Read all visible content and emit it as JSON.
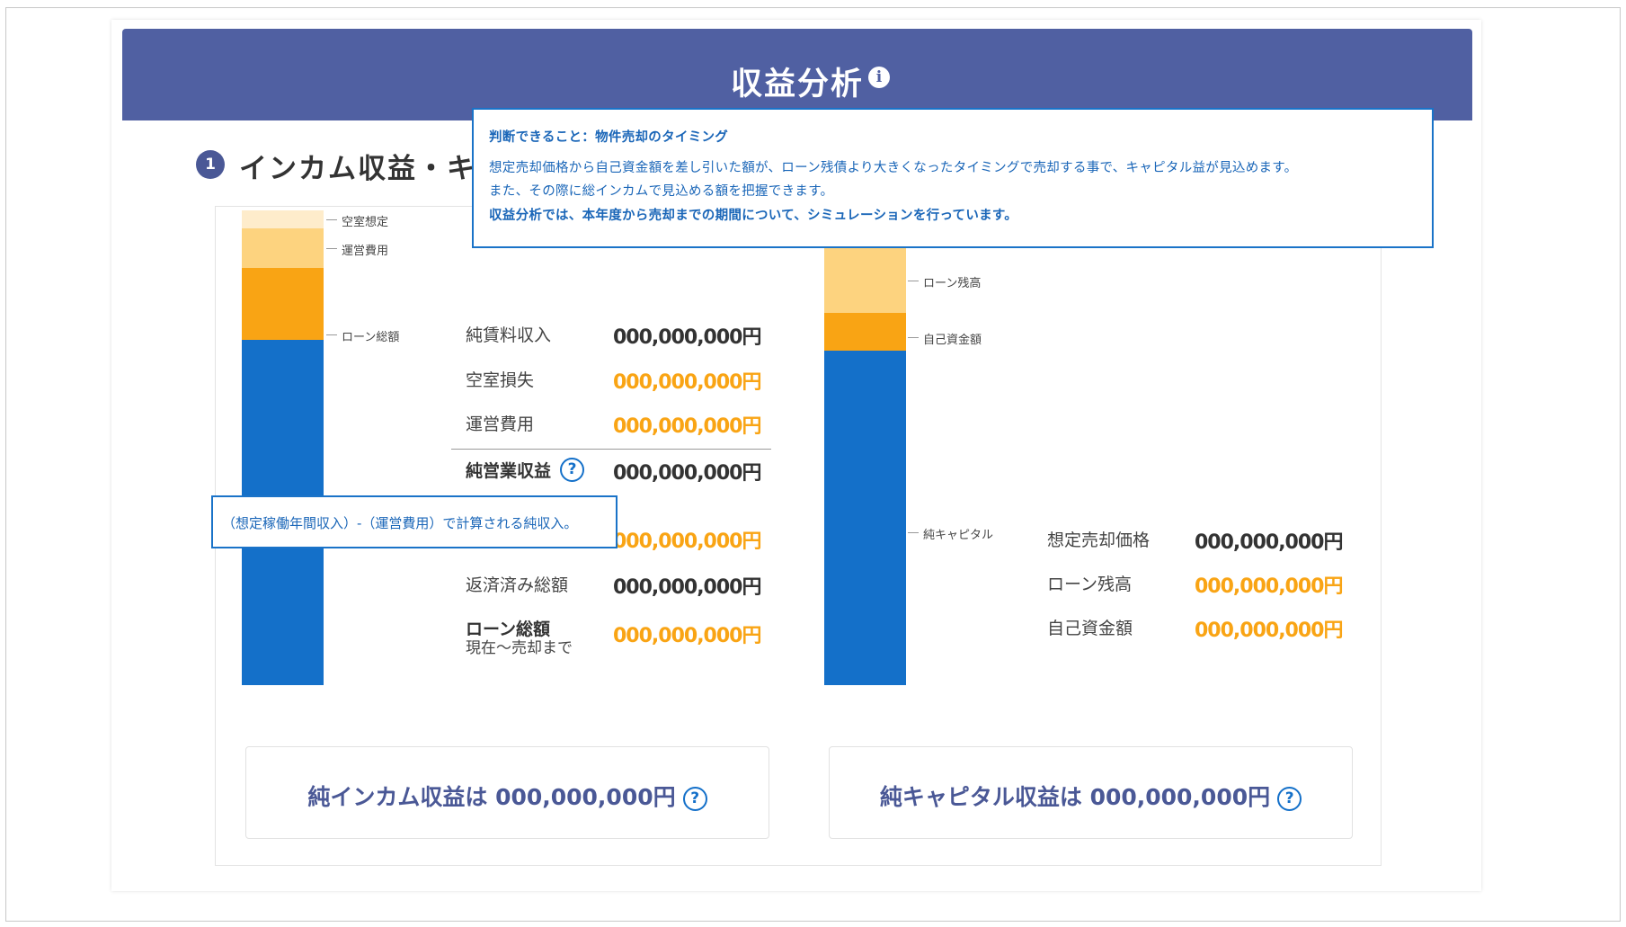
{
  "header": {
    "title": "収益分析"
  },
  "section": {
    "number": "1",
    "title": "インカム収益・キ"
  },
  "info_tooltip": {
    "line1": "判断できること：物件売却のタイミング",
    "line2": "想定売却価格から自己資金額を差し引いた額が、ローン残債より大きくなったタイミングで売却する事で、キャピタル益が見込めます。",
    "line3": "また、その際に総インカムで見込める額を把握できます。",
    "line4": "収益分析では、本年度から売却までの期間について、シミュレーションを行っています。"
  },
  "income": {
    "bar_labels": {
      "vacancy": "空室想定",
      "operating": "運営費用",
      "loan_total": "ローン総額"
    },
    "rows": {
      "net_rent": {
        "label": "純賃料収入",
        "value": "000,000,000円"
      },
      "vacancy_loss": {
        "label": "空室損失",
        "value": "000,000,000円"
      },
      "operating_cost": {
        "label": "運営費用",
        "value": "000,000,000円"
      },
      "noi": {
        "label": "純営業収益",
        "value": "000,000,000円"
      },
      "hidden_row": {
        "value": "000,000,000円"
      },
      "repaid_total": {
        "label": "返済済み総額",
        "value": "000,000,000円"
      },
      "loan_total": {
        "label": "ローン総額",
        "sublabel": "現在〜売却まで",
        "value": "000,000,000円"
      }
    },
    "calc_tooltip": "（想定稼働年間収入）-（運営費用）で計算される純収入。",
    "summary": "純インカム収益は 000,000,000円"
  },
  "capital": {
    "bar_labels": {
      "loan_balance": "ローン残高",
      "own_funds": "自己資金額",
      "net_capital": "純キャピタル"
    },
    "rows": {
      "sale_price": {
        "label": "想定売却価格",
        "value": "000,000,000円"
      },
      "loan_balance": {
        "label": "ローン残高",
        "value": "000,000,000円"
      },
      "own_funds": {
        "label": "自己資金額",
        "value": "000,000,000円"
      }
    },
    "summary": "純キャピタル収益は 000,000,000円"
  },
  "icons": {
    "info": "info-icon",
    "help": "question-circle-icon"
  },
  "colors": {
    "header": "#5060a2",
    "primary_blue": "#1470c9",
    "orange": "#f9a414",
    "light_orange": "#fdd37f",
    "pale_orange": "#feeccb",
    "navy_text": "#4a5896"
  }
}
